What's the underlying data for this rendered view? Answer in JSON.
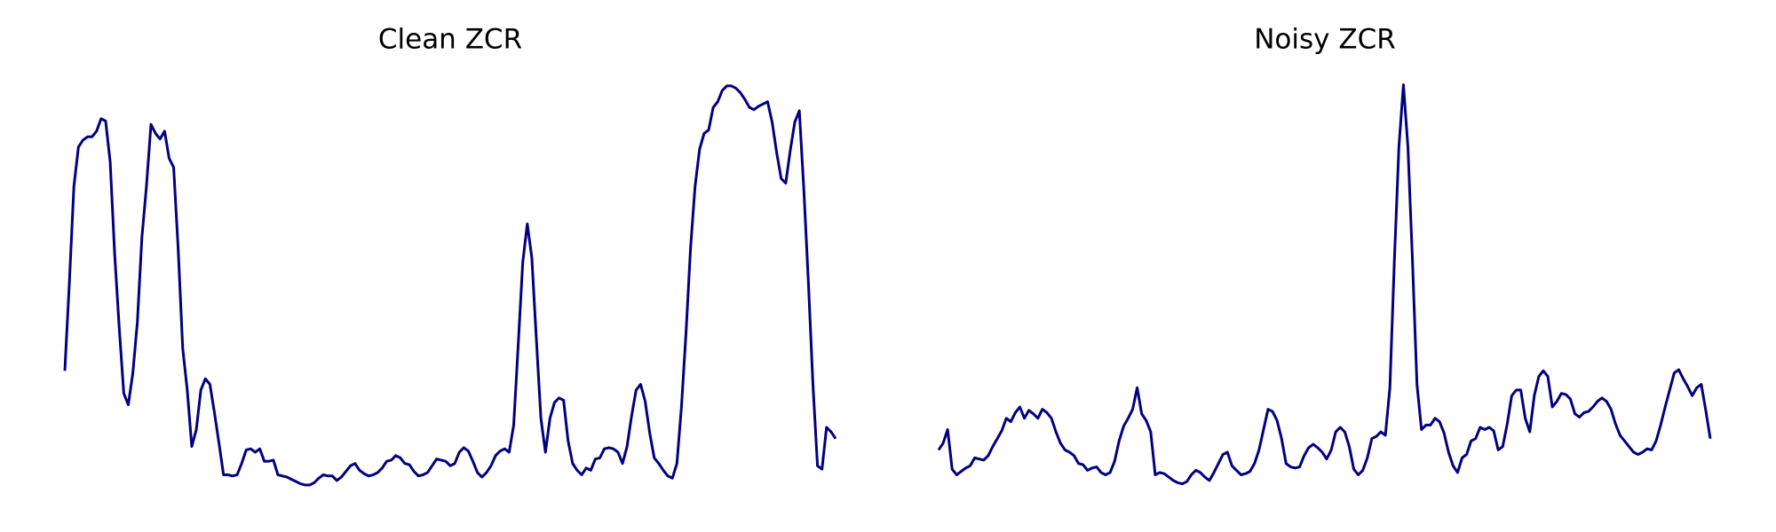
{
  "chart_data": [
    {
      "type": "line",
      "title": "Clean ZCR",
      "color": "#000080",
      "ylim": [
        0,
        380
      ],
      "values": [
        112,
        190,
        275,
        310,
        316,
        319,
        319,
        324,
        335,
        333,
        297,
        215,
        150,
        92,
        82,
        110,
        155,
        230,
        275,
        330,
        322,
        317,
        324,
        300,
        292,
        220,
        132,
        95,
        45,
        60,
        95,
        105,
        100,
        75,
        48,
        20,
        20,
        19,
        20,
        30,
        42,
        43,
        40,
        43,
        32,
        32,
        33,
        20,
        19,
        18,
        16,
        14,
        12,
        11,
        11,
        13,
        17,
        20,
        19,
        19,
        15,
        18,
        23,
        28,
        30,
        24,
        21,
        19,
        20,
        22,
        26,
        32,
        33,
        37,
        35,
        30,
        29,
        23,
        19,
        20,
        22,
        28,
        34,
        33,
        32,
        28,
        30,
        40,
        44,
        41,
        32,
        22,
        18,
        22,
        28,
        37,
        41,
        43,
        40,
        64,
        135,
        208,
        242,
        212,
        140,
        70,
        40,
        70,
        84,
        88,
        86,
        50,
        30,
        24,
        20,
        26,
        24,
        34,
        35,
        43,
        44,
        43,
        40,
        30,
        45,
        72,
        95,
        100,
        85,
        57,
        35,
        30,
        24,
        19,
        17,
        30,
        80,
        145,
        220,
        275,
        308,
        322,
        325,
        345,
        350,
        360,
        364,
        364,
        362,
        358,
        352,
        345,
        343,
        346,
        348,
        350,
        332,
        305,
        282,
        278,
        307,
        332,
        342,
        272,
        190,
        100,
        28,
        25,
        62,
        58,
        52
      ]
    },
    {
      "type": "line",
      "title": "Noisy ZCR",
      "color": "#000080",
      "ylim": [
        0,
        380
      ],
      "values": [
        42,
        48,
        60,
        25,
        20,
        23,
        26,
        28,
        35,
        34,
        33,
        37,
        45,
        52,
        59,
        70,
        67,
        75,
        80,
        70,
        77,
        74,
        70,
        78,
        75,
        70,
        58,
        48,
        42,
        40,
        37,
        30,
        29,
        24,
        26,
        27,
        22,
        20,
        22,
        32,
        50,
        63,
        70,
        78,
        97,
        74,
        68,
        58,
        20,
        22,
        21,
        18,
        15,
        13,
        12,
        14,
        20,
        24,
        22,
        18,
        15,
        22,
        30,
        38,
        40,
        28,
        24,
        20,
        21,
        23,
        30,
        42,
        60,
        78,
        76,
        68,
        52,
        30,
        27,
        26,
        27,
        37,
        44,
        47,
        44,
        40,
        34,
        42,
        58,
        62,
        58,
        45,
        25,
        20,
        24,
        35,
        52,
        54,
        58,
        55,
        97,
        210,
        310,
        365,
        310,
        210,
        100,
        60,
        64,
        64,
        70,
        67,
        57,
        40,
        28,
        22,
        35,
        38,
        50,
        52,
        62,
        60,
        62,
        59,
        42,
        45,
        65,
        90,
        95,
        95,
        70,
        58,
        90,
        107,
        112,
        107,
        80,
        85,
        92,
        91,
        87,
        74,
        71,
        75,
        76,
        80,
        85,
        88,
        85,
        78,
        65,
        55,
        50,
        45,
        40,
        38,
        40,
        43,
        42,
        50,
        64,
        80,
        95,
        110,
        113,
        105,
        98,
        90,
        97,
        100,
        77,
        52
      ]
    }
  ]
}
